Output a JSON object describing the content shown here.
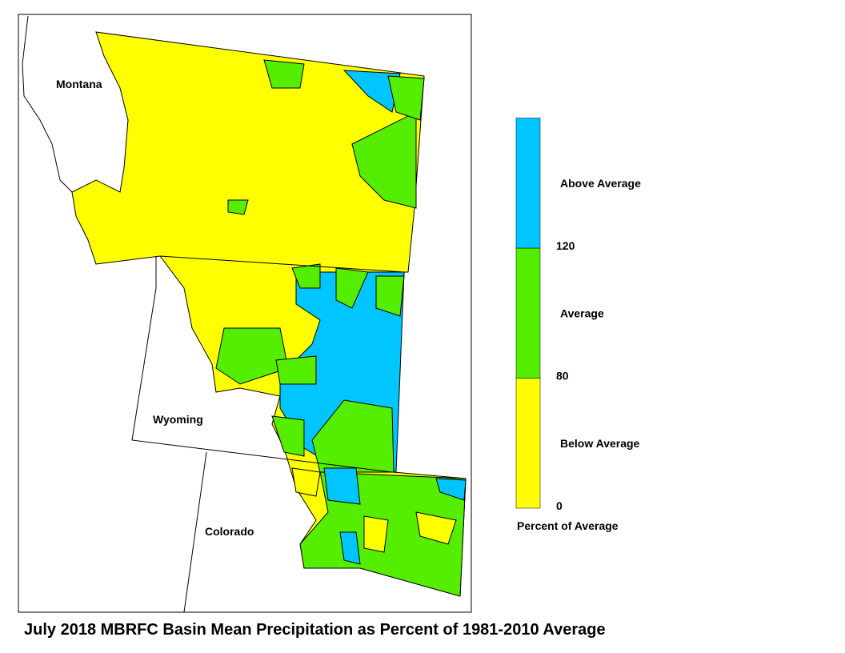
{
  "title": "July 2018 MBRFC Basin Mean Precipitation as Percent of 1981-2010 Average",
  "map": {
    "state_labels": [
      "Montana",
      "Wyoming",
      "Colorado"
    ]
  },
  "legend": {
    "title": "Percent of Average",
    "ticks": [
      0,
      80,
      120
    ],
    "classes": [
      {
        "label": "Below Average",
        "color": "#ffff00"
      },
      {
        "label": "Average",
        "color": "#55ee00"
      },
      {
        "label": "Above Average",
        "color": "#00c5ff"
      }
    ]
  }
}
